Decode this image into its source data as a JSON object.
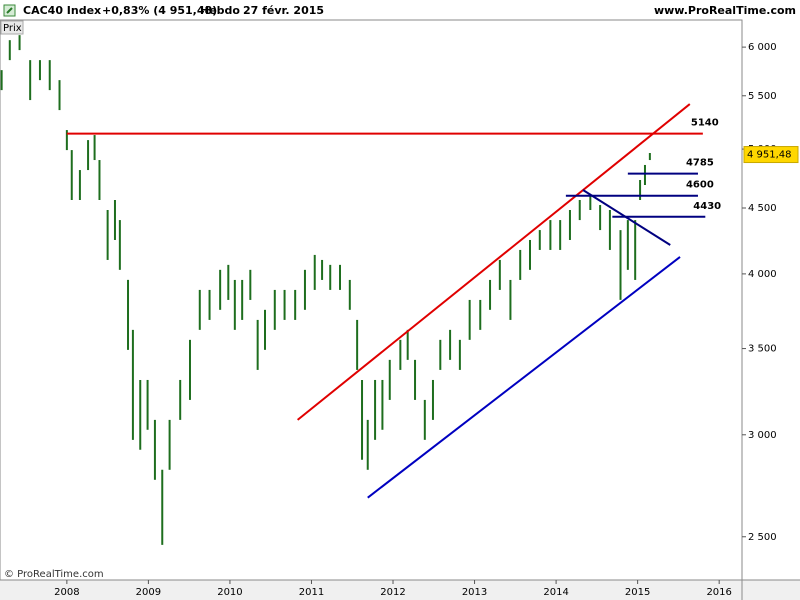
{
  "header": {
    "instrument": "CAC40 Index",
    "change": "+0,83% (4 951,48)",
    "period": "Hebdo",
    "date": "27 févr. 2015",
    "site": "www.ProRealTime.com",
    "panel": "Prix",
    "copyright": "© ProRealTime.com"
  },
  "chart_data": {
    "type": "hilo",
    "color": "#1e6e1e",
    "log_scale": true,
    "xlim": [
      2007.18,
      2016.28
    ],
    "xticks": [
      2008,
      2009,
      2010,
      2011,
      2012,
      2013,
      2014,
      2015,
      2016
    ],
    "ylim": [
      2314,
      6298
    ],
    "yticks": [
      {
        "value": 2500,
        "label": "2 500"
      },
      {
        "value": 3000,
        "label": "3 000"
      },
      {
        "value": 3500,
        "label": "3 500"
      },
      {
        "value": 4000,
        "label": "4 000"
      },
      {
        "value": 4500,
        "label": "4 500"
      },
      {
        "value": 5000,
        "label": "5 000"
      },
      {
        "value": 5500,
        "label": "5 500"
      },
      {
        "value": 6000,
        "label": "6 000"
      }
    ],
    "x": [
      2007.2,
      2007.3,
      2007.42,
      2007.55,
      2007.67,
      2007.79,
      2007.91,
      2008.0,
      2008.06,
      2008.16,
      2008.26,
      2008.34,
      2008.4,
      2008.5,
      2008.59,
      2008.65,
      2008.75,
      2008.81,
      2008.9,
      2008.99,
      2009.08,
      2009.17,
      2009.26,
      2009.39,
      2009.51,
      2009.63,
      2009.75,
      2009.88,
      2009.98,
      2010.06,
      2010.15,
      2010.25,
      2010.34,
      2010.43,
      2010.55,
      2010.67,
      2010.8,
      2010.92,
      2011.04,
      2011.13,
      2011.23,
      2011.35,
      2011.47,
      2011.56,
      2011.62,
      2011.69,
      2011.78,
      2011.87,
      2011.96,
      2012.09,
      2012.18,
      2012.27,
      2012.39,
      2012.49,
      2012.58,
      2012.7,
      2012.82,
      2012.94,
      2013.07,
      2013.19,
      2013.31,
      2013.44,
      2013.56,
      2013.68,
      2013.8,
      2013.93,
      2014.05,
      2014.17,
      2014.29,
      2014.42,
      2014.54,
      2014.66,
      2014.79,
      2014.88,
      2014.97,
      2015.03,
      2015.09,
      2015.15
    ],
    "low": [
      5556,
      5862,
      5968,
      5458,
      5656,
      5556,
      5361,
      4991,
      4565,
      4565,
      4816,
      4903,
      4565,
      4101,
      4250,
      4029,
      3492,
      2973,
      2921,
      3027,
      2768,
      2464,
      2818,
      3081,
      3193,
      3619,
      3684,
      3751,
      3818,
      3619,
      3684,
      3818,
      3369,
      3492,
      3619,
      3684,
      3684,
      3751,
      3887,
      3957,
      3887,
      3887,
      3751,
      3369,
      2869,
      2818,
      2973,
      3027,
      3193,
      3369,
      3430,
      3193,
      2973,
      3081,
      3369,
      3430,
      3369,
      3555,
      3619,
      3751,
      3887,
      3684,
      3957,
      4029,
      4175,
      4175,
      4175,
      4250,
      4404,
      4484,
      4326,
      4175,
      3818,
      4029,
      3957,
      4565,
      4689,
      4903
    ],
    "high": [
      5758,
      6075,
      6130,
      5862,
      5862,
      5862,
      5656,
      5173,
      4991,
      4816,
      5081,
      5127,
      4903,
      4484,
      4565,
      4404,
      3957,
      3619,
      3309,
      3309,
      3081,
      2818,
      3081,
      3309,
      3555,
      3887,
      3887,
      4029,
      4065,
      3957,
      3957,
      4029,
      3684,
      3751,
      3887,
      3887,
      3887,
      4029,
      4138,
      4101,
      4065,
      4065,
      3957,
      3684,
      3309,
      3081,
      3309,
      3309,
      3430,
      3555,
      3619,
      3430,
      3193,
      3309,
      3555,
      3619,
      3555,
      3818,
      3818,
      3957,
      4101,
      3957,
      4175,
      4250,
      4326,
      4404,
      4404,
      4484,
      4565,
      4606,
      4524,
      4484,
      4326,
      4404,
      4404,
      4731,
      4860,
      4965
    ],
    "last_price": {
      "value": 4951.48,
      "label": "4 951,48"
    },
    "levels": [
      {
        "value": 5140,
        "x": [
          2008.0,
          2015.8
        ],
        "color": "#e00000"
      },
      {
        "value": 4785,
        "x": [
          2014.88,
          2015.74
        ],
        "color": "#000080"
      },
      {
        "value": 4600,
        "x": [
          2014.12,
          2015.74
        ],
        "color": "#000080"
      },
      {
        "value": 4430,
        "x": [
          2014.69,
          2015.83
        ],
        "color": "#000080"
      }
    ],
    "trendlines": [
      {
        "x": [
          2010.83,
          2015.64
        ],
        "y": [
          3081,
          5419
        ],
        "color": "#e00000"
      },
      {
        "x": [
          2011.69,
          2015.52
        ],
        "y": [
          2681,
          4123
        ],
        "color": "#0000c0"
      },
      {
        "x": [
          2014.33,
          2015.4
        ],
        "y": [
          4647,
          4212
        ],
        "color": "#000080"
      }
    ]
  }
}
